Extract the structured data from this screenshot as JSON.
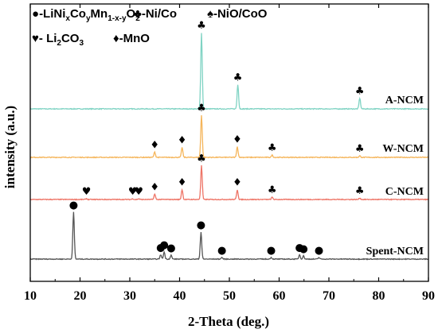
{
  "chart_data": {
    "type": "line",
    "title": "",
    "xlabel": "2-Theta (deg.)",
    "ylabel": "intensity (a.u.)",
    "xlim": [
      10,
      90
    ],
    "x_ticks": [
      10,
      20,
      30,
      40,
      50,
      60,
      70,
      80,
      90
    ],
    "legend": [
      {
        "symbol": "●",
        "text": "-LiNixCoyMn1-x-yO2",
        "rich": [
          "-LiNi",
          {
            "sub": "x"
          },
          "Co",
          {
            "sub": "y"
          },
          "Mn",
          {
            "sub": "1-x-y"
          },
          "O",
          {
            "sub": "2"
          }
        ]
      },
      {
        "symbol": "♣",
        "text": "-Ni/Co"
      },
      {
        "symbol": "♠",
        "text": "-NiO/CoO"
      },
      {
        "symbol": "♥",
        "text": "- Li2CO3",
        "rich": [
          "- Li",
          {
            "sub": "2"
          },
          "CO",
          {
            "sub": "3"
          }
        ]
      },
      {
        "symbol": "♦",
        "text": "-MnO"
      }
    ],
    "series": [
      {
        "name": "A-NCM",
        "color": "#7fd3c3",
        "baseline": 0,
        "peaks": [
          [
            44.4,
            1.0
          ],
          [
            51.7,
            0.32
          ],
          [
            76.2,
            0.14
          ]
        ],
        "markers": [
          {
            "x": 44.4,
            "sym": "♣"
          },
          {
            "x": 51.7,
            "sym": "♣"
          },
          {
            "x": 76.2,
            "sym": "♣"
          }
        ]
      },
      {
        "name": "W-NCM",
        "color": "#f5b55a",
        "baseline": 0,
        "peaks": [
          [
            35.0,
            0.07
          ],
          [
            40.5,
            0.13
          ],
          [
            44.4,
            0.56
          ],
          [
            51.6,
            0.14
          ],
          [
            58.6,
            0.03
          ],
          [
            76.2,
            0.02
          ]
        ],
        "markers": [
          {
            "x": 35.0,
            "sym": "♦"
          },
          {
            "x": 40.5,
            "sym": "♦"
          },
          {
            "x": 44.4,
            "sym": "♣"
          },
          {
            "x": 51.6,
            "sym": "♦"
          },
          {
            "x": 58.6,
            "sym": "♣"
          },
          {
            "x": 76.2,
            "sym": "♣"
          }
        ]
      },
      {
        "name": "C-NCM",
        "color": "#ee7466",
        "baseline": 0,
        "peaks": [
          [
            21.3,
            0.01
          ],
          [
            30.6,
            0.01
          ],
          [
            31.8,
            0.01
          ],
          [
            35.0,
            0.07
          ],
          [
            40.5,
            0.13
          ],
          [
            44.4,
            0.45
          ],
          [
            51.6,
            0.13
          ],
          [
            58.6,
            0.03
          ],
          [
            76.2,
            0.02
          ]
        ],
        "markers": [
          {
            "x": 21.3,
            "sym": "♥"
          },
          {
            "x": 30.6,
            "sym": "♥"
          },
          {
            "x": 31.8,
            "sym": "♥"
          },
          {
            "x": 35.0,
            "sym": "♦"
          },
          {
            "x": 40.5,
            "sym": "♦"
          },
          {
            "x": 44.4,
            "sym": "♣"
          },
          {
            "x": 51.6,
            "sym": "♦"
          },
          {
            "x": 58.6,
            "sym": "♣"
          },
          {
            "x": 76.2,
            "sym": "♣"
          }
        ]
      },
      {
        "name": "Spent-NCM",
        "color": "#555555",
        "baseline": 0,
        "peaks": [
          [
            18.7,
            0.87
          ],
          [
            36.2,
            0.08
          ],
          [
            36.9,
            0.13
          ],
          [
            38.3,
            0.07
          ],
          [
            44.3,
            0.5
          ],
          [
            48.5,
            0.03
          ],
          [
            58.4,
            0.03
          ],
          [
            64.1,
            0.08
          ],
          [
            64.9,
            0.06
          ],
          [
            68.0,
            0.03
          ]
        ],
        "markers": [
          {
            "x": 18.7,
            "sym": "●"
          },
          {
            "x": 36.2,
            "sym": "●"
          },
          {
            "x": 36.9,
            "sym": "●"
          },
          {
            "x": 38.3,
            "sym": "●"
          },
          {
            "x": 44.3,
            "sym": "●"
          },
          {
            "x": 48.5,
            "sym": "●"
          },
          {
            "x": 58.4,
            "sym": "●"
          },
          {
            "x": 64.1,
            "sym": "●"
          },
          {
            "x": 64.9,
            "sym": "●"
          },
          {
            "x": 68.0,
            "sym": "●"
          }
        ]
      }
    ]
  }
}
